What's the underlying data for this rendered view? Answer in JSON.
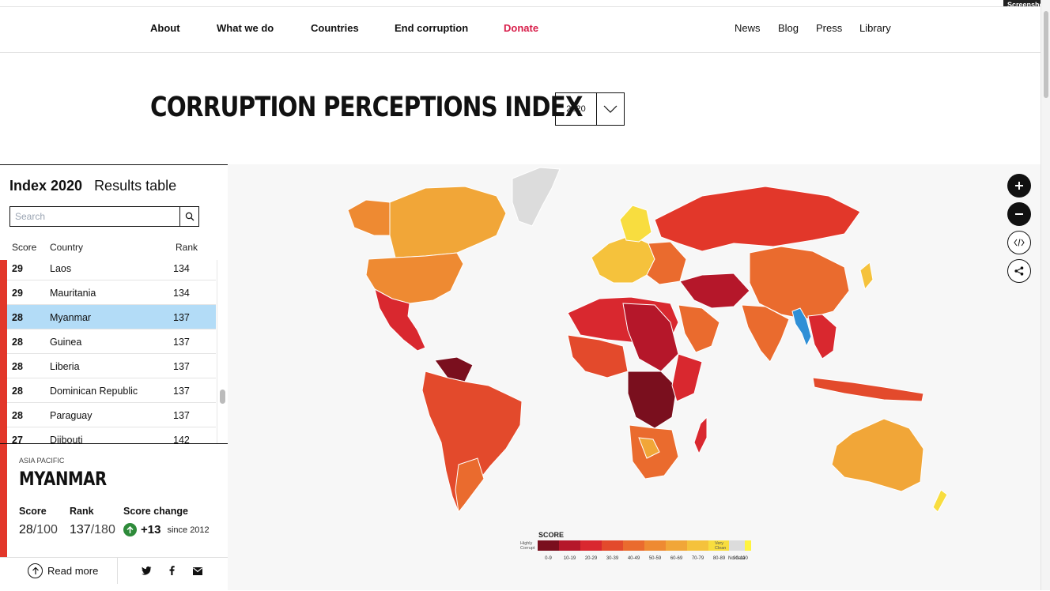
{
  "badge": "Screenshot",
  "nav": {
    "left": [
      "About",
      "What we do",
      "Countries",
      "End corruption",
      "Donate"
    ],
    "right": [
      "News",
      "Blog",
      "Press",
      "Library"
    ]
  },
  "page_title": "CORRUPTION PERCEPTIONS INDEX",
  "year_select": {
    "value": "2020"
  },
  "panel": {
    "tab_index": "Index 2020",
    "tab_results": "Results table",
    "search_placeholder": "Search",
    "columns": [
      "Score",
      "Country",
      "Rank"
    ],
    "rows": [
      {
        "score": "29",
        "country": "Laos",
        "rank": "134"
      },
      {
        "score": "29",
        "country": "Mauritania",
        "rank": "134"
      },
      {
        "score": "28",
        "country": "Myanmar",
        "rank": "137",
        "selected": true
      },
      {
        "score": "28",
        "country": "Guinea",
        "rank": "137"
      },
      {
        "score": "28",
        "country": "Liberia",
        "rank": "137"
      },
      {
        "score": "28",
        "country": "Dominican Republic",
        "rank": "137"
      },
      {
        "score": "28",
        "country": "Paraguay",
        "rank": "137"
      },
      {
        "score": "27",
        "country": "Djibouti",
        "rank": "142"
      }
    ]
  },
  "detail": {
    "region": "ASIA PACIFIC",
    "country": "MYANMAR",
    "score_label": "Score",
    "score_value": "28",
    "score_max": "/100",
    "rank_label": "Rank",
    "rank_value": "137",
    "rank_max": "/180",
    "change_label": "Score change",
    "change_value": "+13",
    "change_since": "since 2012",
    "read_more": "Read more"
  },
  "legend": {
    "title": "SCORE",
    "low_label_1": "Highly",
    "low_label_2": "Corrupt",
    "high_label_1": "Very",
    "high_label_2": "Clean",
    "bins": [
      "0-9",
      "10-19",
      "20-29",
      "30-39",
      "40-49",
      "50-59",
      "60-69",
      "70-79",
      "80-89",
      "90-100"
    ],
    "colors": [
      "#7a0f1e",
      "#b5172a",
      "#d9282f",
      "#e34a2c",
      "#ea6b2e",
      "#ee8a32",
      "#f1a638",
      "#f5c23c",
      "#f8dd3f",
      "#fff33f"
    ],
    "nodata_label": "No data",
    "nodata_color": "#dcdcdc",
    "highlight_color": "#2f8fd6"
  },
  "icons": {
    "zoom_in": "plus-icon",
    "zoom_out": "minus-icon",
    "embed": "code-icon",
    "share": "share-icon"
  }
}
